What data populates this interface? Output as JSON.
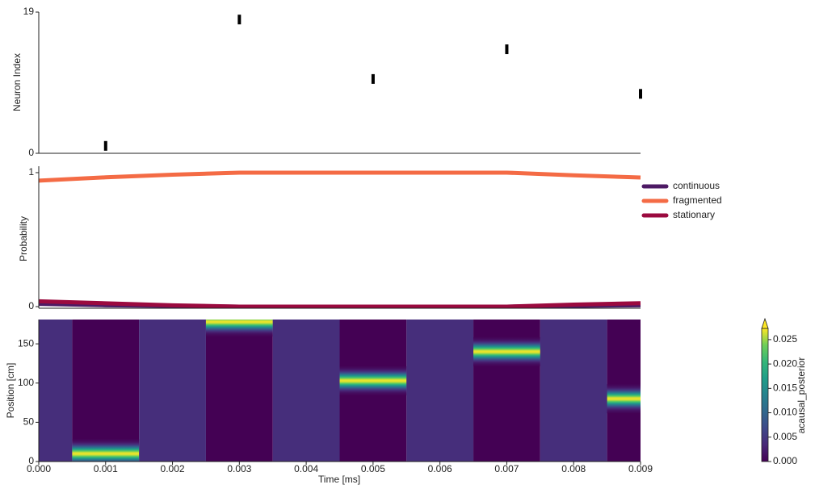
{
  "chart_data": [
    {
      "type": "raster",
      "ylabel": "Neuron Index",
      "x": [
        0.001,
        0.003,
        0.005,
        0.007,
        0.009
      ],
      "values": [
        1,
        18,
        10,
        14,
        8
      ],
      "color": "#000000",
      "xlim": [
        0,
        0.009
      ],
      "ylim": [
        0,
        19
      ],
      "yticks": [
        0,
        19
      ]
    },
    {
      "type": "line",
      "ylabel": "Probability",
      "x": [
        0,
        0.001,
        0.002,
        0.003,
        0.004,
        0.005,
        0.006,
        0.007,
        0.008,
        0.009
      ],
      "series": [
        {
          "name": "continuous",
          "color": "#4d1a64",
          "values": [
            0.02,
            0.01,
            0.005,
            0,
            0,
            0,
            0,
            0,
            0.005,
            0.01
          ]
        },
        {
          "name": "fragmented",
          "color": "#f46b45",
          "values": [
            0.94,
            0.965,
            0.985,
            1,
            1,
            1,
            1,
            1,
            0.98,
            0.964
          ]
        },
        {
          "name": "stationary",
          "color": "#9b0a3f",
          "values": [
            0.04,
            0.025,
            0.01,
            0,
            0,
            0,
            0,
            0,
            0.015,
            0.026
          ]
        }
      ],
      "xlim": [
        0,
        0.009
      ],
      "ylim": [
        -0.012,
        1.048
      ],
      "yticks": [
        0,
        1
      ],
      "legend": "right"
    },
    {
      "type": "heatmap",
      "xlabel": "Time [ms]",
      "ylabel": "Position [cm]",
      "colorbar_label": "acausal_posterior",
      "colormap": "viridis",
      "x": [
        0,
        0.001,
        0.002,
        0.003,
        0.004,
        0.005,
        0.006,
        0.007,
        0.008,
        0.009
      ],
      "background": [
        0.004,
        0,
        0.004,
        0,
        0.004,
        0,
        0.004,
        0,
        0.004,
        0
      ],
      "peak_position": [
        null,
        10,
        null,
        178,
        null,
        103,
        null,
        140,
        null,
        80
      ],
      "peak_value": [
        null,
        0.027,
        null,
        0.027,
        null,
        0.027,
        null,
        0.027,
        null,
        0.027
      ],
      "xlim": [
        0,
        0.009
      ],
      "ylim": [
        0,
        181
      ],
      "xticks": [
        {
          "value": 0,
          "label": "0.000"
        },
        0.001,
        0.002,
        0.003,
        0.004,
        0.005,
        0.006,
        0.007,
        0.008,
        0.009
      ],
      "yticks": [
        0,
        50,
        100,
        150
      ],
      "clim": [
        0,
        0.0273
      ],
      "cticks": [
        {
          "value": 0,
          "label": "0.000"
        },
        0.005,
        {
          "value": 0.01,
          "label": "0.010"
        },
        0.015,
        {
          "value": 0.02,
          "label": "0.020"
        },
        0.025
      ]
    }
  ]
}
